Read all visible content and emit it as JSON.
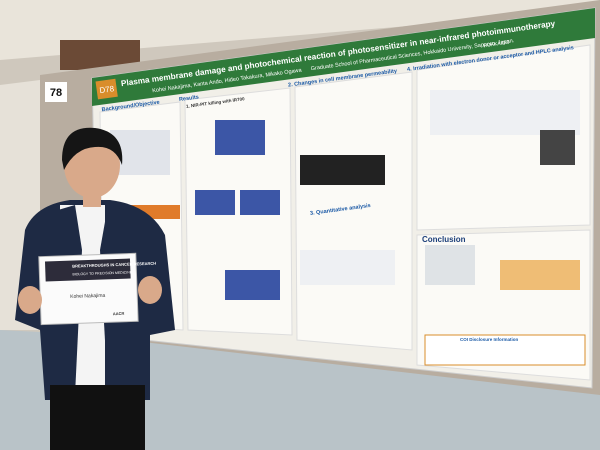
{
  "poster": {
    "board_number": "78",
    "poster_id": "D78",
    "title": "Plasma membrane damage and photochemical reaction of photosensitizer in near-infrared photoimmunotherapy",
    "authors": "Kohei Nakajima, Kanta Ando, Hideo Takakura, Mikako Ogawa",
    "affiliation": "Graduate School of Pharmaceutical Sciences, Hokkaido University, Sapporo, Japan.",
    "logo": "HOKKAIDO",
    "sections": [
      "Background/Objective",
      "Results",
      "1. NIR-PIT killing with IR700",
      "2. Changes in cell membrane permeability",
      "3. Quantitative analysis",
      "4. Irradiation with electron donor or acceptor and HPLC analysis",
      "Conclusion",
      "COI Disclosure Information"
    ]
  },
  "certificate": {
    "heading": "BREAKTHROUGHS IN CANCER RESEARCH",
    "subheading": "BIOLOGY TO PRECISION MEDICINE",
    "name": "Kohei Nakajima",
    "org": "AACR"
  }
}
